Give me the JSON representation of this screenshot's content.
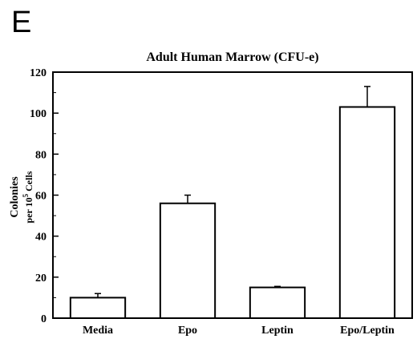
{
  "panel_label": "E",
  "chart_data": {
    "type": "bar",
    "title": "Adult Human Marrow (CFU-e)",
    "ylabel_line1": "Colonies",
    "ylabel_line2_prefix": "per 10",
    "ylabel_line2_sup": "5",
    "ylabel_line2_suffix": " Cells",
    "xlabel": "",
    "categories": [
      "Media",
      "Epo",
      "Leptin",
      "Epo/Leptin"
    ],
    "values": [
      10,
      56,
      15,
      103
    ],
    "errors": [
      2,
      4,
      0.5,
      10
    ],
    "ylim": [
      0,
      120
    ],
    "yticks": [
      0,
      20,
      40,
      60,
      80,
      100,
      120
    ],
    "grid": false,
    "bar_fill": "#ffffff",
    "bar_stroke": "#000000"
  }
}
